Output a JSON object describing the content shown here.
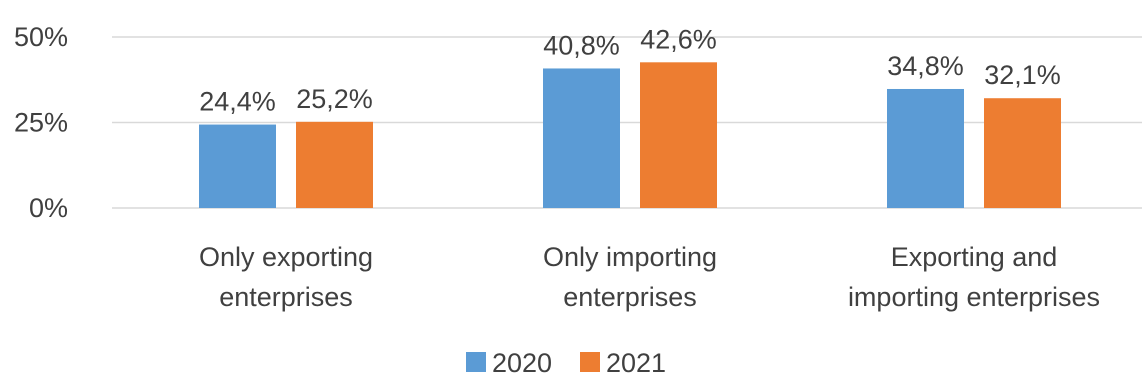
{
  "chart_data": {
    "type": "bar",
    "title": "",
    "xlabel": "",
    "ylabel": "",
    "categories": [
      [
        "Only exporting",
        "enterprises"
      ],
      [
        "Only importing",
        "enterprises"
      ],
      [
        "Exporting and",
        "importing enterprises"
      ]
    ],
    "series": [
      {
        "name": "2020",
        "color": "#5B9BD5",
        "values": [
          24.4,
          40.8,
          34.8
        ],
        "labels": [
          "24,4%",
          "40,8%",
          "34,8%"
        ]
      },
      {
        "name": "2021",
        "color": "#ED7D31",
        "values": [
          25.2,
          42.6,
          32.1
        ],
        "labels": [
          "25,2%",
          "42,6%",
          "32,1%"
        ]
      }
    ],
    "ylim": [
      0,
      50
    ],
    "yticks": [
      {
        "value": 0,
        "label": "0%"
      },
      {
        "value": 25,
        "label": "25%"
      },
      {
        "value": 50,
        "label": "50%"
      }
    ],
    "grid": true,
    "legend_position": "bottom",
    "gridline_color": "#D9D9D9"
  }
}
